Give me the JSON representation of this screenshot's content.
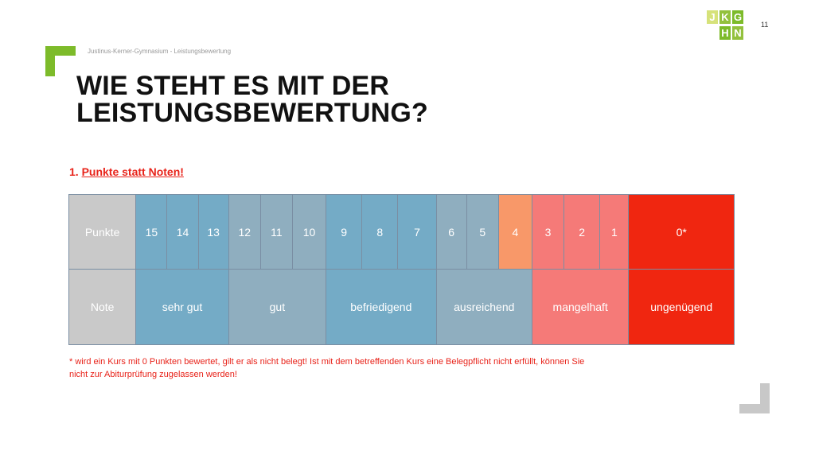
{
  "colors": {
    "accent_green": "#7dbb2a",
    "corner_gray": "#c8c8c8",
    "header_gray": "#c9c9c9",
    "blue": "#74abc6",
    "gray_blue": "#8faebf",
    "orange": "#f89869",
    "salmon": "#f57a78",
    "red": "#f02610",
    "note_red": "#e8231a"
  },
  "page_number": "11",
  "logo": {
    "letters": [
      "J",
      "K",
      "G",
      "H",
      "N"
    ]
  },
  "header": {
    "subtitle": "Justinus-Kerner-Gymnasium - Leistungsbewertung"
  },
  "title": {
    "line1": "WIE STEHT ES MIT DER",
    "line2": "LEISTUNGSBEWERTUNG?"
  },
  "section": {
    "number": "1.",
    "label": "Punkte statt Noten!"
  },
  "table": {
    "punkte_label": "Punkte",
    "note_label": "Note",
    "points": [
      {
        "value": "15",
        "color": "#74abc6"
      },
      {
        "value": "14",
        "color": "#74abc6"
      },
      {
        "value": "13",
        "color": "#74abc6"
      },
      {
        "value": "12",
        "color": "#8faebf"
      },
      {
        "value": "11",
        "color": "#8faebf"
      },
      {
        "value": "10",
        "color": "#8faebf"
      },
      {
        "value": "9",
        "color": "#74abc6"
      },
      {
        "value": "8",
        "color": "#74abc6"
      },
      {
        "value": "7",
        "color": "#74abc6"
      },
      {
        "value": "6",
        "color": "#8faebf"
      },
      {
        "value": "5",
        "color": "#8faebf"
      },
      {
        "value": "4",
        "color": "#f89869"
      },
      {
        "value": "3",
        "color": "#f57a78"
      },
      {
        "value": "2",
        "color": "#f57a78"
      },
      {
        "value": "1",
        "color": "#f57a78"
      },
      {
        "value": "0*",
        "color": "#f02610"
      }
    ],
    "grades": [
      {
        "label": "sehr gut",
        "span": 3,
        "color": "#74abc6"
      },
      {
        "label": "gut",
        "span": 3,
        "color": "#8faebf"
      },
      {
        "label": "befriedigend",
        "span": 3,
        "color": "#74abc6"
      },
      {
        "label": "ausreichend",
        "span": 3,
        "color": "#8faebf"
      },
      {
        "label": "mangelhaft",
        "span": 3,
        "color": "#f57a78"
      },
      {
        "label": "ungenügend",
        "span": 1,
        "color": "#f02610"
      }
    ]
  },
  "footnote": {
    "line1": "* wird ein Kurs mit 0 Punkten bewertet, gilt er als nicht belegt! Ist mit dem betreffenden Kurs eine Belegpflicht nicht erfüllt, können Sie",
    "line2": "nicht zur Abiturprüfung zugelassen werden!"
  }
}
